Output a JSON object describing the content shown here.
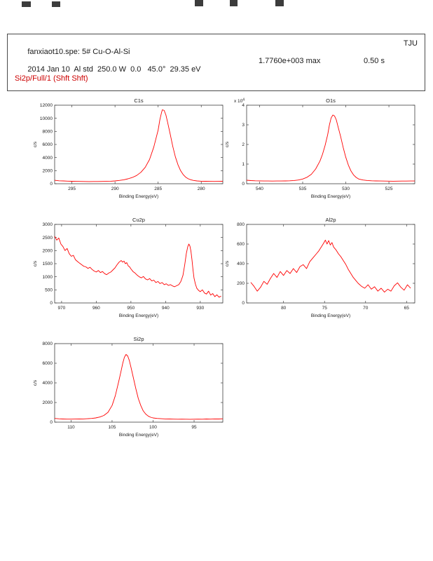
{
  "colors": {
    "line": "#ff0000",
    "axis": "#404040",
    "text": "#1a1a1a",
    "region_text": "#cc0000"
  },
  "header": {
    "file_line": "fanxiaot10.spe: 5# Cu-O-Al-Si",
    "org": "TJU",
    "acq_line": "2014 Jan 10  Al std  250.0 W  0.0   45.0°  29.35 eV",
    "max_label": "1.7760e+003 max",
    "time_label": "0.50 s",
    "region_line": "Si2p/Full/1 (Shft Shft)"
  },
  "chart_data": [
    {
      "type": "line",
      "title": "C1s",
      "xlabel": "Binding Energy(eV)",
      "ylabel": "c/s",
      "xlim": [
        297,
        277.5
      ],
      "ylim": [
        0,
        12000
      ],
      "xticks": [
        295,
        290,
        285,
        280
      ],
      "yticks": [
        0,
        2000,
        4000,
        6000,
        8000,
        10000,
        12000
      ],
      "points": [
        [
          297,
          520
        ],
        [
          296.5,
          450
        ],
        [
          296,
          430
        ],
        [
          295.5,
          400
        ],
        [
          295,
          380
        ],
        [
          294.5,
          360
        ],
        [
          294,
          350
        ],
        [
          293.5,
          340
        ],
        [
          293,
          335
        ],
        [
          292.5,
          345
        ],
        [
          292,
          340
        ],
        [
          291.5,
          355
        ],
        [
          291,
          365
        ],
        [
          290.5,
          390
        ],
        [
          290,
          430
        ],
        [
          289.5,
          500
        ],
        [
          289,
          600
        ],
        [
          288.5,
          750
        ],
        [
          288,
          950
        ],
        [
          287.5,
          1250
        ],
        [
          287,
          1750
        ],
        [
          286.5,
          2500
        ],
        [
          286,
          3700
        ],
        [
          285.5,
          5600
        ],
        [
          285,
          8200
        ],
        [
          284.8,
          9800
        ],
        [
          284.6,
          10900
        ],
        [
          284.5,
          11300
        ],
        [
          284.3,
          11200
        ],
        [
          284.1,
          10500
        ],
        [
          283.9,
          9400
        ],
        [
          283.6,
          7600
        ],
        [
          283.3,
          5700
        ],
        [
          283,
          4100
        ],
        [
          282.7,
          2900
        ],
        [
          282.4,
          2000
        ],
        [
          282.1,
          1400
        ],
        [
          281.8,
          1000
        ],
        [
          281.5,
          750
        ],
        [
          281.2,
          600
        ],
        [
          280.9,
          500
        ],
        [
          280.5,
          430
        ],
        [
          280,
          390
        ],
        [
          279.5,
          370
        ],
        [
          279,
          360
        ],
        [
          278.5,
          355
        ],
        [
          278,
          360
        ],
        [
          277.5,
          370
        ]
      ]
    },
    {
      "type": "line",
      "title": "O1s",
      "xlabel": "Binding Energy(eV)",
      "ylabel": "c/s",
      "xlim": [
        541.5,
        522
      ],
      "ylim": [
        0,
        40000
      ],
      "xticks": [
        540,
        535,
        530,
        525
      ],
      "yticks": [
        0,
        10000,
        20000,
        30000,
        40000
      ],
      "ytick_labels": [
        "0",
        "1",
        "2",
        "3",
        "4"
      ],
      "y_multiplier": {
        "text": "x 10",
        "exp": "4"
      },
      "points": [
        [
          541.5,
          1800
        ],
        [
          541,
          1600
        ],
        [
          540.5,
          1500
        ],
        [
          540,
          1450
        ],
        [
          539.5,
          1400
        ],
        [
          539,
          1380
        ],
        [
          538.5,
          1350
        ],
        [
          538,
          1400
        ],
        [
          537.5,
          1380
        ],
        [
          537,
          1420
        ],
        [
          536.5,
          1500
        ],
        [
          536,
          1650
        ],
        [
          535.5,
          1900
        ],
        [
          535,
          2400
        ],
        [
          534.5,
          3300
        ],
        [
          534,
          4800
        ],
        [
          533.5,
          7500
        ],
        [
          533,
          11500
        ],
        [
          532.7,
          15000
        ],
        [
          532.4,
          19500
        ],
        [
          532.1,
          25000
        ],
        [
          531.9,
          30000
        ],
        [
          531.7,
          33500
        ],
        [
          531.5,
          35000
        ],
        [
          531.3,
          34500
        ],
        [
          531.1,
          32500
        ],
        [
          530.9,
          29000
        ],
        [
          530.6,
          24000
        ],
        [
          530.3,
          18500
        ],
        [
          530,
          13500
        ],
        [
          529.7,
          9500
        ],
        [
          529.4,
          6500
        ],
        [
          529.1,
          4500
        ],
        [
          528.8,
          3200
        ],
        [
          528.5,
          2400
        ],
        [
          528,
          1900
        ],
        [
          527.5,
          1650
        ],
        [
          527,
          1500
        ],
        [
          526.5,
          1420
        ],
        [
          526,
          1380
        ],
        [
          525.5,
          1350
        ],
        [
          525,
          1320
        ],
        [
          524.5,
          1300
        ],
        [
          524,
          1320
        ],
        [
          523.5,
          1340
        ],
        [
          523,
          1360
        ],
        [
          522.5,
          1380
        ],
        [
          522,
          1400
        ]
      ]
    },
    {
      "type": "line",
      "title": "Cu2p",
      "xlabel": "Binding Energy(eV)",
      "ylabel": "c/s",
      "xlim": [
        972,
        923.5
      ],
      "ylim": [
        0,
        3000
      ],
      "xticks": [
        970,
        960,
        950,
        940,
        930
      ],
      "yticks": [
        0,
        500,
        1000,
        1500,
        2000,
        2500,
        3000
      ],
      "points": [
        [
          972,
          2550
        ],
        [
          971.4,
          2400
        ],
        [
          970.8,
          2480
        ],
        [
          970.2,
          2250
        ],
        [
          969.6,
          2150
        ],
        [
          969,
          2000
        ],
        [
          968.4,
          2080
        ],
        [
          967.8,
          1880
        ],
        [
          967.2,
          1780
        ],
        [
          966.6,
          1820
        ],
        [
          966,
          1650
        ],
        [
          965.4,
          1580
        ],
        [
          964.8,
          1520
        ],
        [
          964.2,
          1460
        ],
        [
          963.6,
          1400
        ],
        [
          963,
          1380
        ],
        [
          962.4,
          1320
        ],
        [
          961.8,
          1360
        ],
        [
          961.2,
          1280
        ],
        [
          960.6,
          1220
        ],
        [
          960,
          1180
        ],
        [
          959.4,
          1240
        ],
        [
          958.8,
          1160
        ],
        [
          958.2,
          1200
        ],
        [
          957.6,
          1120
        ],
        [
          957,
          1080
        ],
        [
          956.4,
          1140
        ],
        [
          955.8,
          1180
        ],
        [
          955.2,
          1260
        ],
        [
          954.6,
          1340
        ],
        [
          954,
          1460
        ],
        [
          953.4,
          1560
        ],
        [
          952.8,
          1620
        ],
        [
          952.4,
          1560
        ],
        [
          952,
          1600
        ],
        [
          951.6,
          1500
        ],
        [
          951.2,
          1540
        ],
        [
          950.8,
          1420
        ],
        [
          950.4,
          1380
        ],
        [
          950,
          1300
        ],
        [
          949.4,
          1200
        ],
        [
          948.8,
          1140
        ],
        [
          948.2,
          1060
        ],
        [
          947.6,
          1000
        ],
        [
          947,
          960
        ],
        [
          946.4,
          1010
        ],
        [
          945.8,
          920
        ],
        [
          945.2,
          880
        ],
        [
          944.6,
          930
        ],
        [
          944,
          840
        ],
        [
          943.4,
          870
        ],
        [
          942.8,
          780
        ],
        [
          942.2,
          820
        ],
        [
          941.6,
          740
        ],
        [
          941,
          780
        ],
        [
          940.4,
          700
        ],
        [
          939.8,
          730
        ],
        [
          939.2,
          670
        ],
        [
          938.6,
          700
        ],
        [
          938,
          650
        ],
        [
          937.4,
          620
        ],
        [
          936.8,
          660
        ],
        [
          936.2,
          700
        ],
        [
          935.6,
          820
        ],
        [
          935,
          1050
        ],
        [
          934.5,
          1450
        ],
        [
          934,
          1900
        ],
        [
          933.6,
          2150
        ],
        [
          933.3,
          2250
        ],
        [
          933,
          2180
        ],
        [
          932.7,
          1980
        ],
        [
          932.4,
          1650
        ],
        [
          932.1,
          1280
        ],
        [
          931.8,
          950
        ],
        [
          931.4,
          720
        ],
        [
          931,
          560
        ],
        [
          930.5,
          480
        ],
        [
          930,
          430
        ],
        [
          929.4,
          500
        ],
        [
          928.8,
          380
        ],
        [
          928.2,
          340
        ],
        [
          927.6,
          450
        ],
        [
          927,
          300
        ],
        [
          926.4,
          360
        ],
        [
          925.8,
          240
        ],
        [
          925.2,
          310
        ],
        [
          924.6,
          220
        ],
        [
          924,
          260
        ]
      ]
    },
    {
      "type": "line",
      "title": "Al2p",
      "xlabel": "Binding Energy(eV)",
      "ylabel": "c/s",
      "xlim": [
        84.5,
        64
      ],
      "ylim": [
        0,
        800
      ],
      "xticks": [
        80,
        75,
        70,
        65
      ],
      "yticks": [
        0,
        200,
        400,
        600,
        800
      ],
      "points": [
        [
          84,
          210
        ],
        [
          83.6,
          170
        ],
        [
          83.2,
          120
        ],
        [
          82.8,
          160
        ],
        [
          82.4,
          220
        ],
        [
          82,
          190
        ],
        [
          81.6,
          250
        ],
        [
          81.2,
          300
        ],
        [
          80.8,
          260
        ],
        [
          80.4,
          320
        ],
        [
          80,
          280
        ],
        [
          79.6,
          330
        ],
        [
          79.2,
          300
        ],
        [
          78.8,
          350
        ],
        [
          78.4,
          310
        ],
        [
          78,
          370
        ],
        [
          77.6,
          390
        ],
        [
          77.2,
          350
        ],
        [
          76.8,
          420
        ],
        [
          76.4,
          460
        ],
        [
          76,
          500
        ],
        [
          75.7,
          530
        ],
        [
          75.4,
          570
        ],
        [
          75.1,
          610
        ],
        [
          74.9,
          640
        ],
        [
          74.7,
          600
        ],
        [
          74.5,
          635
        ],
        [
          74.3,
          590
        ],
        [
          74.1,
          615
        ],
        [
          73.9,
          570
        ],
        [
          73.6,
          540
        ],
        [
          73.3,
          500
        ],
        [
          73,
          470
        ],
        [
          72.7,
          430
        ],
        [
          72.4,
          390
        ],
        [
          72.1,
          340
        ],
        [
          71.8,
          300
        ],
        [
          71.5,
          260
        ],
        [
          71.2,
          230
        ],
        [
          70.9,
          200
        ],
        [
          70.5,
          170
        ],
        [
          70.1,
          150
        ],
        [
          69.7,
          185
        ],
        [
          69.3,
          140
        ],
        [
          68.9,
          165
        ],
        [
          68.5,
          120
        ],
        [
          68.1,
          150
        ],
        [
          67.7,
          110
        ],
        [
          67.3,
          140
        ],
        [
          66.9,
          120
        ],
        [
          66.5,
          175
        ],
        [
          66.1,
          205
        ],
        [
          65.7,
          160
        ],
        [
          65.3,
          130
        ],
        [
          64.9,
          185
        ],
        [
          64.5,
          150
        ]
      ]
    },
    {
      "type": "line",
      "title": "Si2p",
      "xlabel": "Binding Energy(eV)",
      "ylabel": "c/s",
      "xlim": [
        112,
        91.5
      ],
      "ylim": [
        0,
        8000
      ],
      "xticks": [
        110,
        105,
        100,
        95
      ],
      "yticks": [
        0,
        2000,
        4000,
        6000,
        8000
      ],
      "points": [
        [
          112,
          380
        ],
        [
          111.5,
          340
        ],
        [
          111,
          320
        ],
        [
          110.5,
          310
        ],
        [
          110,
          305
        ],
        [
          109.5,
          315
        ],
        [
          109,
          320
        ],
        [
          108.5,
          330
        ],
        [
          108,
          350
        ],
        [
          107.5,
          380
        ],
        [
          107,
          430
        ],
        [
          106.5,
          520
        ],
        [
          106,
          680
        ],
        [
          105.5,
          1000
        ],
        [
          105,
          1700
        ],
        [
          104.6,
          2700
        ],
        [
          104.2,
          4100
        ],
        [
          103.9,
          5200
        ],
        [
          103.7,
          6000
        ],
        [
          103.5,
          6600
        ],
        [
          103.3,
          6900
        ],
        [
          103.1,
          6750
        ],
        [
          102.9,
          6300
        ],
        [
          102.7,
          5600
        ],
        [
          102.4,
          4500
        ],
        [
          102.1,
          3400
        ],
        [
          101.8,
          2400
        ],
        [
          101.5,
          1700
        ],
        [
          101.2,
          1150
        ],
        [
          100.9,
          820
        ],
        [
          100.6,
          620
        ],
        [
          100.3,
          500
        ],
        [
          100,
          430
        ],
        [
          99.5,
          380
        ],
        [
          99,
          350
        ],
        [
          98.5,
          330
        ],
        [
          98,
          320
        ],
        [
          97.5,
          310
        ],
        [
          97,
          300
        ],
        [
          96.5,
          310
        ],
        [
          96,
          300
        ],
        [
          95.5,
          290
        ],
        [
          95,
          300
        ],
        [
          94.5,
          310
        ],
        [
          94,
          300
        ],
        [
          93.5,
          320
        ],
        [
          93,
          310
        ],
        [
          92.5,
          330
        ],
        [
          92,
          320
        ],
        [
          91.5,
          340
        ]
      ]
    }
  ]
}
